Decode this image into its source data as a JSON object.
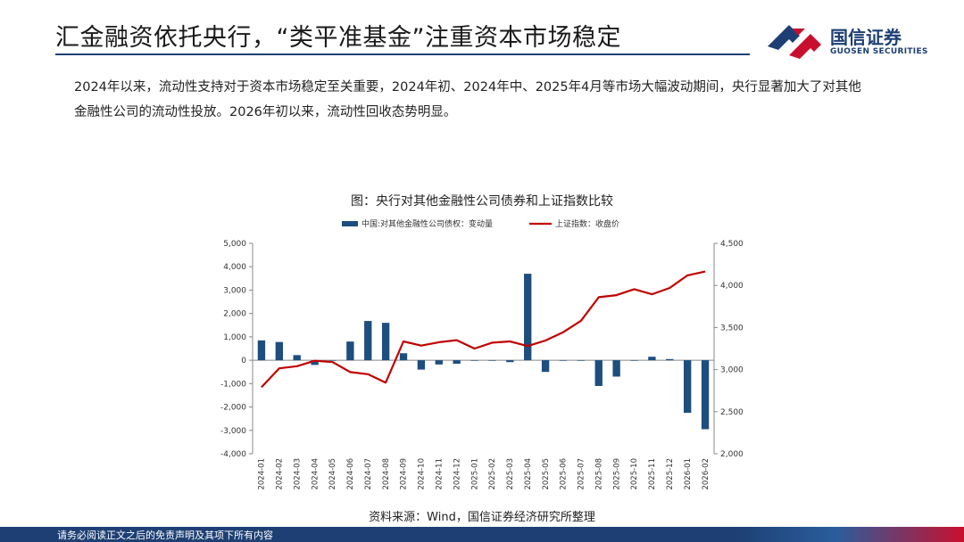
{
  "header": {
    "title": "汇金融资依托央行，“类平准基金”注重资本市场稳定",
    "logo_name": "国信证券",
    "logo_en": "GUOSEN SECURITIES"
  },
  "body": {
    "bullet": "",
    "line1": "2024年以来，流动性支持对于资本市场稳定至关重要，2024年初、2024年中、2025年4月等市场大幅波动期间，央行显著加大了对其他",
    "line2": "金融性公司的流动性投放。2026年初以来，流动性回收态势明显。"
  },
  "chart_data": {
    "type": "bar+line",
    "title": "图：央行对其他金融性公司债券和上证指数比较",
    "categories": [
      "2024-01",
      "2024-02",
      "2024-03",
      "2024-04",
      "2024-05",
      "2024-06",
      "2024-07",
      "2024-08",
      "2024-09",
      "2024-10",
      "2024-11",
      "2024-12",
      "2025-01",
      "2025-02",
      "2025-03",
      "2025-04",
      "2025-05",
      "2025-06",
      "2025-07",
      "2025-08",
      "2025-09",
      "2025-10",
      "2025-11",
      "2025-12",
      "2026-01",
      "2026-02"
    ],
    "series": [
      {
        "name": "中国:对其他金融性公司债权：变动量",
        "type": "bar",
        "axis": "left",
        "color": "#1d4e7e",
        "values": [
          850,
          780,
          220,
          -200,
          0,
          800,
          1680,
          1600,
          300,
          -400,
          -180,
          -150,
          0,
          0,
          -80,
          3700,
          -500,
          0,
          0,
          -1100,
          -700,
          0,
          150,
          50,
          -2250,
          -2950
        ]
      },
      {
        "name": "上证指数：收盘价",
        "type": "line",
        "axis": "right",
        "color": "#c00000",
        "values": [
          2790,
          3015,
          3040,
          3105,
          3090,
          2970,
          2945,
          2845,
          3335,
          3285,
          3325,
          3350,
          3250,
          3320,
          3335,
          3280,
          3345,
          3445,
          3580,
          3860,
          3885,
          3955,
          3895,
          3970,
          4120,
          4165
        ]
      }
    ],
    "y_left": {
      "min": -4000,
      "max": 5000,
      "step": 1000,
      "ticks": [
        "5,000",
        "4,000",
        "3,000",
        "2,000",
        "1,000",
        "0",
        "-1,000",
        "-2,000",
        "-3,000",
        "-4,000"
      ]
    },
    "y_right": {
      "min": 2000,
      "max": 4500,
      "step": 500,
      "ticks": [
        "4,500",
        "4,000",
        "3,500",
        "3,000",
        "2,500",
        "2,000"
      ]
    },
    "legend_position": "top-center",
    "grid": false
  },
  "source": "资料来源：Wind，国信证券经济研究所整理",
  "footer": "请务必阅读正文之后的免责声明及其项下所有内容",
  "colors": {
    "brand_blue": "#1d3f73",
    "brand_red": "#c8102e",
    "bar": "#1d4e7e",
    "line": "#c00000"
  }
}
